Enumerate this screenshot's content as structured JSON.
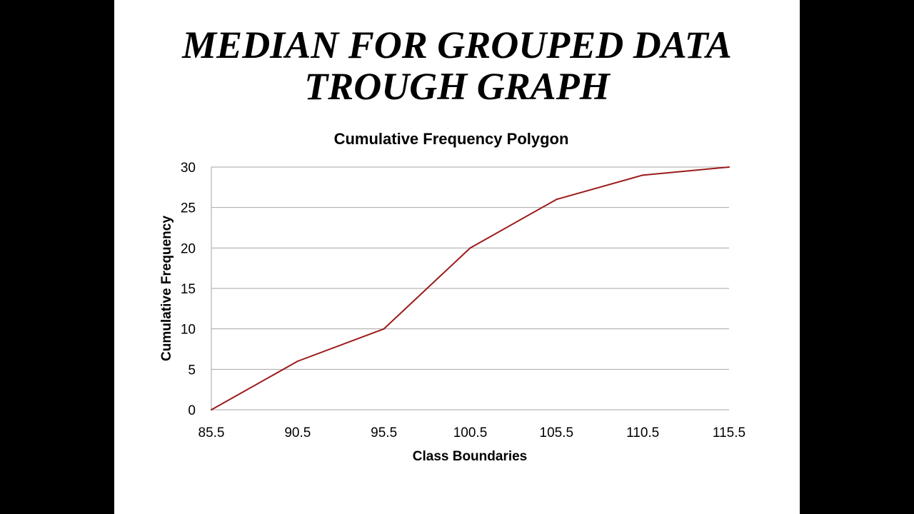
{
  "slide": {
    "title_line1": "MEDIAN FOR GROUPED DATA",
    "title_line2": "TROUGH GRAPH"
  },
  "chart_data": {
    "type": "line",
    "title": "Cumulative Frequency Polygon",
    "xlabel": "Class Boundaries",
    "ylabel": "Cumulative Frequency",
    "x": [
      "85.5",
      "90.5",
      "95.5",
      "100.5",
      "105.5",
      "110.5",
      "115.5"
    ],
    "series": [
      {
        "values": [
          0,
          6,
          10,
          20,
          26,
          29,
          30
        ],
        "color": "#9b1b1b"
      }
    ],
    "ylim": [
      0,
      30
    ],
    "yticks": [
      0,
      5,
      10,
      15,
      20,
      25,
      30
    ],
    "grid": true,
    "legend": "none"
  }
}
